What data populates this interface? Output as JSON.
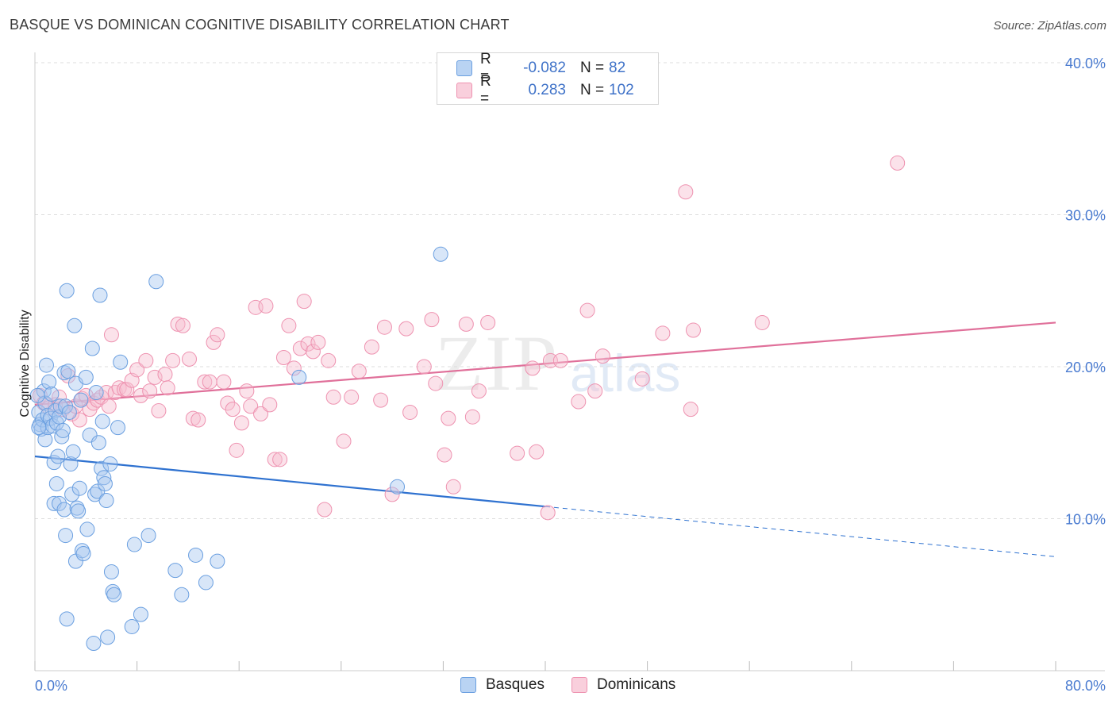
{
  "header": {
    "title": "BASQUE VS DOMINICAN COGNITIVE DISABILITY CORRELATION CHART",
    "source": "Source: ZipAtlas.com"
  },
  "legend": {
    "rows": [
      {
        "r_label": "R =",
        "r_value": "-0.082",
        "n_label": "N =",
        "n_value": "82"
      },
      {
        "r_label": "R =",
        "r_value": "0.283",
        "n_label": "N =",
        "n_value": "102"
      }
    ]
  },
  "bottom_legend": {
    "series1": "Basques",
    "series2": "Dominicans"
  },
  "watermark": {
    "zip": "ZIP",
    "atlas": "atlas"
  },
  "colors": {
    "basque_fill": "#a9c8f0",
    "basque_stroke": "#6a9fe0",
    "basque_line": "#2f72d0",
    "dominican_fill": "#f6bfd0",
    "dominican_stroke": "#ee92b0",
    "dominican_line": "#e0709a",
    "grid": "#dddddd",
    "tick_label": "#4a7bd0"
  },
  "chart_data": {
    "type": "scatter",
    "title": "BASQUE VS DOMINICAN COGNITIVE DISABILITY CORRELATION CHART",
    "xlabel": "",
    "ylabel": "Cognitive Disability",
    "xlim": [
      0,
      80
    ],
    "ylim": [
      0,
      41
    ],
    "x_tick_labels": [
      "0.0%",
      "80.0%"
    ],
    "y_ticks": [
      10,
      20,
      30,
      40
    ],
    "y_tick_labels": [
      "10.0%",
      "20.0%",
      "30.0%",
      "40.0%"
    ],
    "grid": true,
    "legend_placement": "top-center",
    "series": [
      {
        "name": "Basques",
        "r": -0.082,
        "n": 82,
        "trend": {
          "x0": 0,
          "y0": 14.1,
          "x1": 40,
          "y1": 10.8,
          "dashed_to_x": 80,
          "dashed_to_y": 7.5
        },
        "points": [
          [
            0.3,
            17.0
          ],
          [
            0.4,
            16.2
          ],
          [
            0.5,
            15.9
          ],
          [
            0.6,
            16.5
          ],
          [
            0.7,
            18.4
          ],
          [
            0.8,
            17.6
          ],
          [
            0.8,
            15.2
          ],
          [
            0.9,
            20.1
          ],
          [
            1.0,
            16.8
          ],
          [
            1.0,
            16.0
          ],
          [
            1.1,
            19.0
          ],
          [
            1.2,
            16.6
          ],
          [
            1.3,
            18.2
          ],
          [
            1.4,
            16.1
          ],
          [
            1.5,
            13.7
          ],
          [
            1.5,
            11.0
          ],
          [
            1.6,
            17.1
          ],
          [
            1.7,
            16.3
          ],
          [
            1.7,
            12.3
          ],
          [
            1.8,
            14.1
          ],
          [
            1.9,
            11.0
          ],
          [
            1.9,
            16.7
          ],
          [
            2.0,
            17.4
          ],
          [
            2.1,
            15.4
          ],
          [
            2.2,
            15.8
          ],
          [
            2.3,
            19.6
          ],
          [
            2.3,
            10.6
          ],
          [
            2.4,
            8.9
          ],
          [
            2.4,
            17.4
          ],
          [
            2.5,
            25.0
          ],
          [
            2.5,
            3.4
          ],
          [
            2.6,
            19.7
          ],
          [
            2.7,
            17.0
          ],
          [
            2.8,
            13.6
          ],
          [
            2.9,
            11.6
          ],
          [
            3.0,
            14.4
          ],
          [
            3.1,
            22.7
          ],
          [
            3.2,
            18.9
          ],
          [
            3.2,
            7.2
          ],
          [
            3.3,
            10.7
          ],
          [
            3.4,
            10.5
          ],
          [
            3.5,
            12.0
          ],
          [
            3.6,
            17.8
          ],
          [
            3.7,
            7.9
          ],
          [
            3.8,
            7.7
          ],
          [
            4.0,
            19.3
          ],
          [
            4.1,
            9.3
          ],
          [
            4.3,
            15.5
          ],
          [
            4.5,
            21.2
          ],
          [
            4.6,
            1.8
          ],
          [
            4.7,
            11.6
          ],
          [
            4.8,
            18.3
          ],
          [
            4.9,
            11.8
          ],
          [
            5.0,
            15.0
          ],
          [
            5.1,
            24.7
          ],
          [
            5.2,
            13.3
          ],
          [
            5.3,
            16.4
          ],
          [
            5.4,
            12.7
          ],
          [
            5.5,
            12.3
          ],
          [
            5.6,
            11.2
          ],
          [
            5.7,
            2.2
          ],
          [
            5.9,
            13.6
          ],
          [
            6.0,
            6.5
          ],
          [
            6.1,
            5.2
          ],
          [
            6.2,
            5.0
          ],
          [
            6.5,
            16.0
          ],
          [
            6.7,
            20.3
          ],
          [
            7.6,
            2.9
          ],
          [
            7.8,
            8.3
          ],
          [
            8.3,
            3.7
          ],
          [
            8.9,
            8.9
          ],
          [
            9.5,
            25.6
          ],
          [
            11.0,
            6.6
          ],
          [
            11.5,
            5.0
          ],
          [
            12.6,
            7.6
          ],
          [
            13.4,
            5.8
          ],
          [
            14.3,
            7.2
          ],
          [
            20.7,
            19.3
          ],
          [
            28.4,
            12.1
          ],
          [
            31.8,
            27.4
          ],
          [
            0.2,
            18.1
          ],
          [
            0.3,
            16.0
          ]
        ]
      },
      {
        "name": "Dominicans",
        "r": 0.283,
        "n": 102,
        "trend": {
          "x0": 0,
          "y0": 17.5,
          "x1": 80,
          "y1": 22.9
        },
        "points": [
          [
            0.4,
            18.1
          ],
          [
            0.7,
            17.6
          ],
          [
            1.1,
            17.3
          ],
          [
            1.6,
            17.5
          ],
          [
            1.9,
            18.0
          ],
          [
            2.2,
            17.2
          ],
          [
            2.6,
            19.4
          ],
          [
            2.9,
            16.9
          ],
          [
            3.2,
            17.4
          ],
          [
            3.5,
            16.5
          ],
          [
            3.7,
            17.9
          ],
          [
            4.0,
            18.1
          ],
          [
            4.3,
            17.2
          ],
          [
            4.6,
            17.6
          ],
          [
            4.9,
            17.8
          ],
          [
            5.2,
            18.0
          ],
          [
            5.6,
            18.3
          ],
          [
            5.8,
            17.4
          ],
          [
            6.0,
            22.1
          ],
          [
            6.3,
            18.3
          ],
          [
            6.6,
            18.6
          ],
          [
            7.0,
            18.5
          ],
          [
            7.2,
            18.5
          ],
          [
            7.6,
            19.1
          ],
          [
            8.0,
            19.8
          ],
          [
            8.3,
            18.1
          ],
          [
            8.7,
            20.4
          ],
          [
            9.0,
            18.4
          ],
          [
            9.4,
            19.3
          ],
          [
            9.7,
            17.1
          ],
          [
            10.2,
            19.5
          ],
          [
            10.4,
            18.6
          ],
          [
            10.8,
            20.4
          ],
          [
            11.2,
            22.8
          ],
          [
            11.6,
            22.7
          ],
          [
            12.1,
            20.5
          ],
          [
            12.4,
            16.6
          ],
          [
            12.8,
            16.5
          ],
          [
            13.3,
            19.0
          ],
          [
            13.7,
            19.0
          ],
          [
            14.0,
            21.6
          ],
          [
            14.3,
            22.1
          ],
          [
            14.8,
            19.0
          ],
          [
            15.1,
            17.6
          ],
          [
            15.5,
            17.2
          ],
          [
            15.8,
            14.5
          ],
          [
            16.2,
            16.3
          ],
          [
            16.6,
            18.4
          ],
          [
            16.9,
            17.4
          ],
          [
            17.3,
            23.9
          ],
          [
            17.7,
            16.9
          ],
          [
            18.1,
            24.0
          ],
          [
            18.4,
            17.5
          ],
          [
            18.8,
            13.9
          ],
          [
            19.2,
            13.9
          ],
          [
            19.5,
            20.6
          ],
          [
            19.9,
            22.7
          ],
          [
            20.3,
            19.9
          ],
          [
            20.8,
            21.2
          ],
          [
            21.1,
            24.3
          ],
          [
            21.4,
            21.5
          ],
          [
            21.8,
            21.0
          ],
          [
            22.2,
            21.6
          ],
          [
            22.7,
            10.6
          ],
          [
            23.0,
            20.4
          ],
          [
            23.4,
            18.0
          ],
          [
            24.2,
            15.1
          ],
          [
            24.8,
            18.0
          ],
          [
            25.4,
            19.7
          ],
          [
            26.4,
            21.3
          ],
          [
            27.1,
            17.8
          ],
          [
            27.4,
            22.6
          ],
          [
            28.0,
            11.6
          ],
          [
            29.1,
            22.5
          ],
          [
            29.4,
            17.0
          ],
          [
            30.5,
            20.0
          ],
          [
            31.1,
            23.1
          ],
          [
            31.4,
            18.9
          ],
          [
            32.1,
            14.2
          ],
          [
            32.4,
            16.6
          ],
          [
            32.8,
            12.1
          ],
          [
            33.8,
            22.8
          ],
          [
            34.3,
            16.7
          ],
          [
            34.8,
            18.4
          ],
          [
            35.5,
            22.9
          ],
          [
            37.8,
            14.3
          ],
          [
            39.0,
            19.9
          ],
          [
            39.3,
            14.4
          ],
          [
            40.2,
            10.4
          ],
          [
            40.4,
            20.4
          ],
          [
            41.2,
            20.4
          ],
          [
            42.6,
            17.7
          ],
          [
            43.3,
            23.7
          ],
          [
            43.9,
            18.4
          ],
          [
            44.5,
            20.7
          ],
          [
            47.6,
            19.2
          ],
          [
            49.2,
            22.2
          ],
          [
            51.0,
            31.5
          ],
          [
            51.4,
            17.2
          ],
          [
            51.6,
            22.4
          ],
          [
            57.0,
            22.9
          ],
          [
            67.6,
            33.4
          ]
        ]
      }
    ]
  }
}
